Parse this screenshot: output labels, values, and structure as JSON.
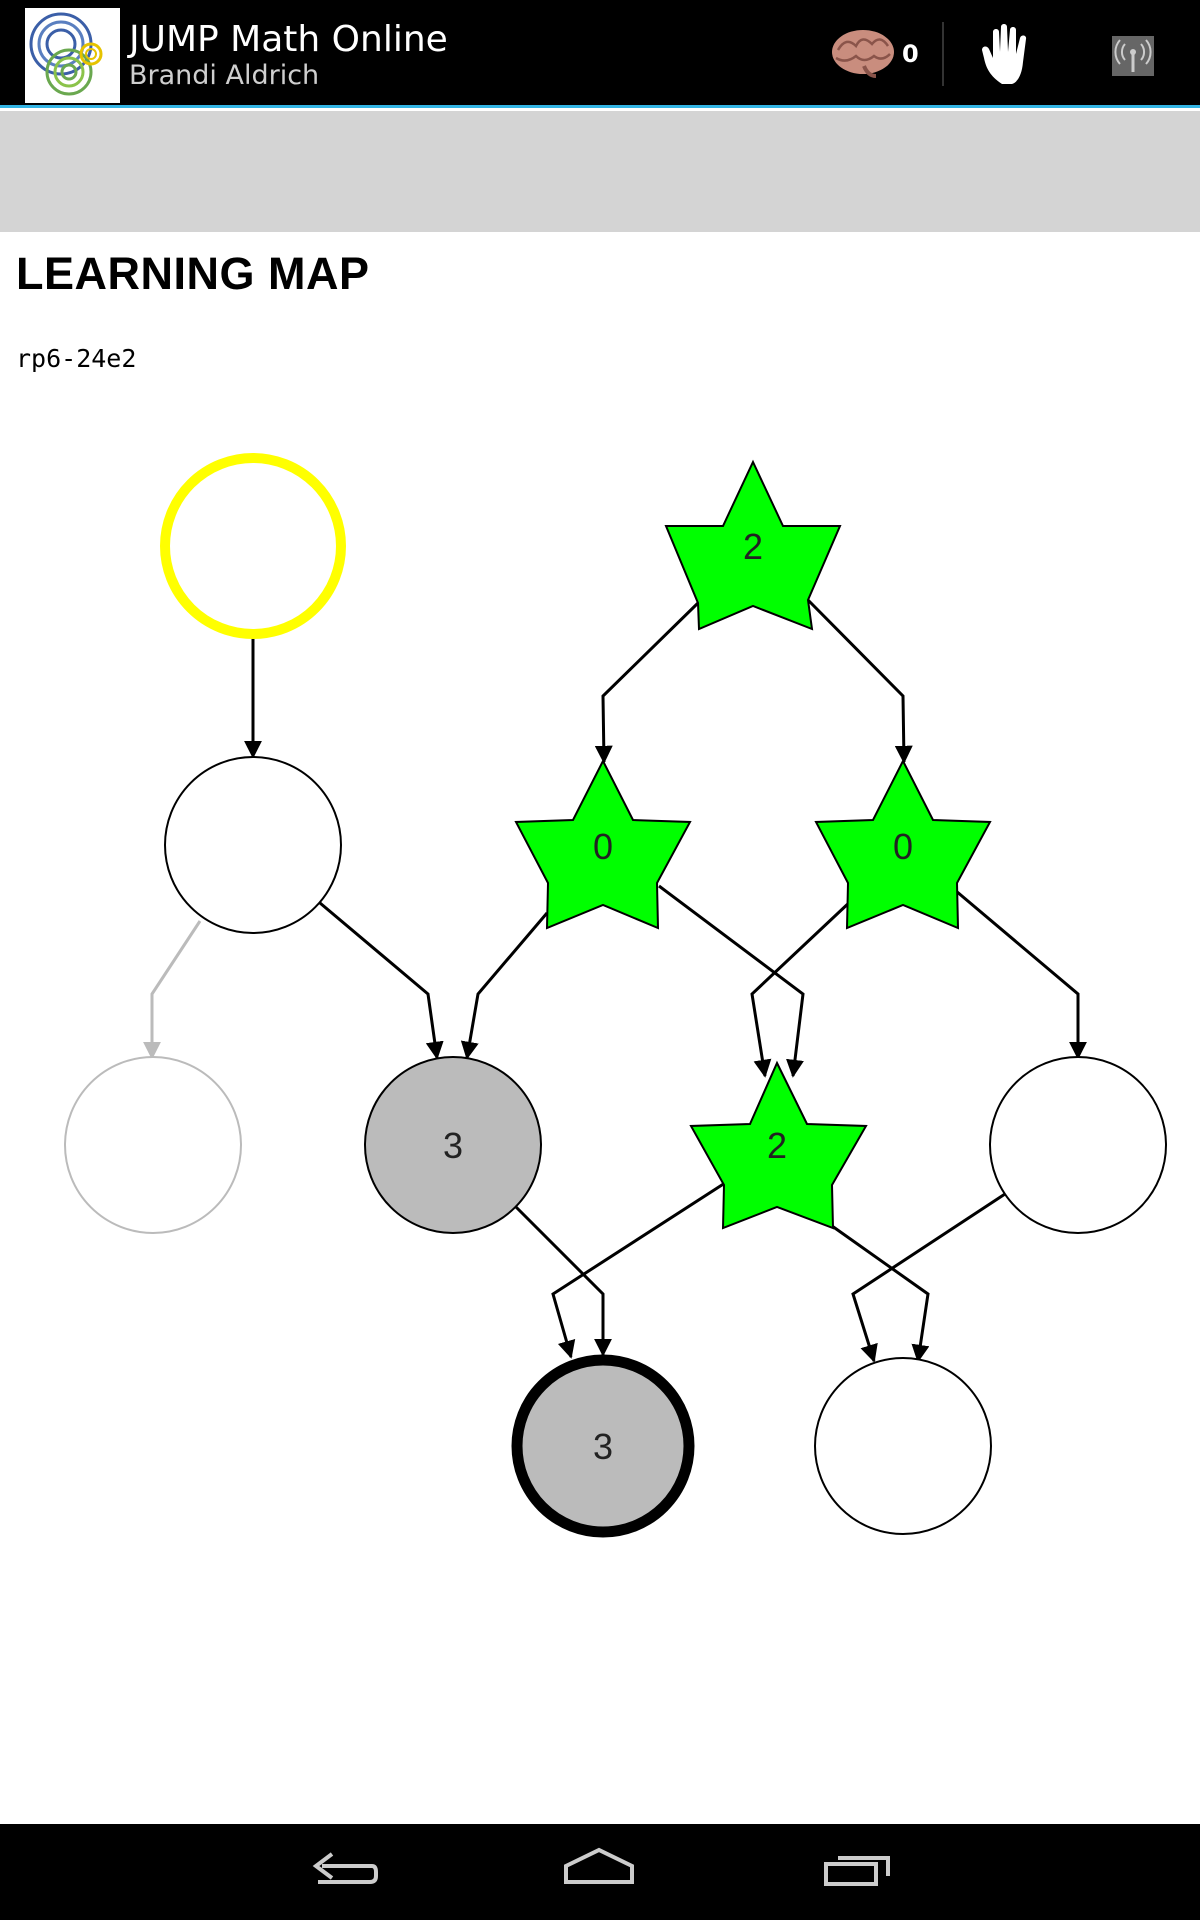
{
  "app": {
    "title": "JUMP Math Online",
    "subtitle": "Brandi Aldrich"
  },
  "action_bar": {
    "brain_count": "0",
    "icons": [
      "app-logo-icon",
      "brain-icon",
      "raise-hand-icon",
      "signal-icon"
    ]
  },
  "page": {
    "title": "LEARNING MAP",
    "code": "rp6-24e2"
  },
  "colors": {
    "accent": "#33b5e5",
    "star_fill": "#00ff00",
    "current_ring": "#ffff00",
    "grey_node": "#bbbbbb",
    "disabled": "#bbbbbb"
  },
  "map": {
    "nodes": [
      {
        "id": "n1",
        "shape": "circle",
        "status": "current",
        "label": ""
      },
      {
        "id": "n2",
        "shape": "star",
        "status": "done",
        "label": "2"
      },
      {
        "id": "n3",
        "shape": "circle",
        "status": "open",
        "label": ""
      },
      {
        "id": "n4",
        "shape": "star",
        "status": "done",
        "label": "0"
      },
      {
        "id": "n5",
        "shape": "star",
        "status": "done",
        "label": "0"
      },
      {
        "id": "n6",
        "shape": "circle",
        "status": "disabled",
        "label": ""
      },
      {
        "id": "n7",
        "shape": "circle",
        "status": "grey",
        "label": "3"
      },
      {
        "id": "n8",
        "shape": "star",
        "status": "done",
        "label": "2"
      },
      {
        "id": "n9",
        "shape": "circle",
        "status": "open",
        "label": ""
      },
      {
        "id": "n10",
        "shape": "circle",
        "status": "grey-bold",
        "label": "3"
      },
      {
        "id": "n11",
        "shape": "circle",
        "status": "open",
        "label": ""
      }
    ]
  },
  "navbar": {
    "icons": [
      "back-icon",
      "home-icon",
      "recent-apps-icon"
    ]
  }
}
